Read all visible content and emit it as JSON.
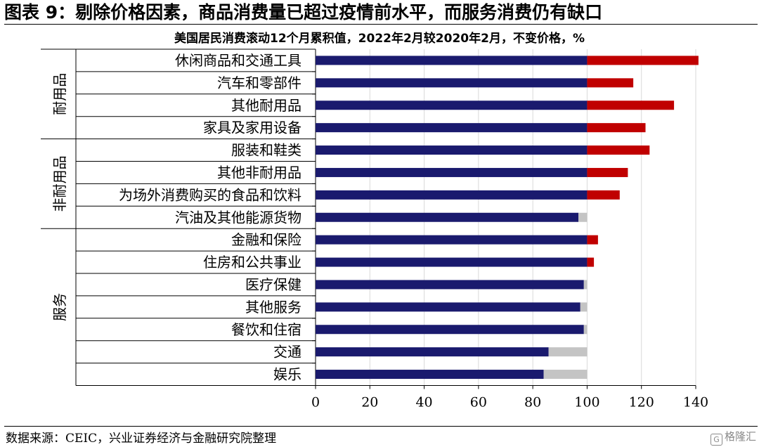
{
  "figure": {
    "title": "图表 9：剔除价格因素，商品消费量已超过疫情前水平，而服务消费仍有缺口",
    "source": "数据来源：CEIC，兴业证券经济与金融研究院整理",
    "watermark": "格隆汇",
    "watermark_icon": "G"
  },
  "colors": {
    "base_bar": "#1a1a6e",
    "excess_bar": "#c00000",
    "gap_bar": "#c4c4c4",
    "grid": "#d9d9d9"
  },
  "chart_data": {
    "type": "bar",
    "orientation": "horizontal",
    "stacked": true,
    "title": "美国居民消费滚动12个月累积值，2022年2月较2020年2月，不变价格，%",
    "xlabel": "",
    "ylabel": "",
    "xlim": [
      0,
      140
    ],
    "xticks": [
      0,
      20,
      40,
      60,
      80,
      100,
      120,
      140
    ],
    "grid": true,
    "legend": null,
    "groups": [
      {
        "name": "耐用品",
        "categories": [
          "休闲商品和交通工具",
          "汽车和零部件",
          "其他耐用品",
          "家具及家用设备"
        ]
      },
      {
        "name": "非耐用品",
        "categories": [
          "服装和鞋类",
          "其他非耐用品",
          "为场外消费购买的食品和饮料",
          "汽油及其他能源货物"
        ]
      },
      {
        "name": "服务",
        "categories": [
          "金融和保险",
          "住房和公共事业",
          "医疗保健",
          "其他服务",
          "餐饮和住宿",
          "交通",
          "娱乐"
        ]
      }
    ],
    "categories": [
      "休闲商品和交通工具",
      "汽车和零部件",
      "其他耐用品",
      "家具及家用设备",
      "服装和鞋类",
      "其他非耐用品",
      "为场外消费购买的食品和饮料",
      "汽油及其他能源货物",
      "金融和保险",
      "住房和公共事业",
      "医疗保健",
      "其他服务",
      "餐饮和住宿",
      "交通",
      "娱乐"
    ],
    "values": [
      141,
      117,
      132,
      121.5,
      123,
      115,
      112,
      96.8,
      104,
      102.5,
      98.8,
      97.5,
      98.8,
      85.8,
      84
    ]
  }
}
